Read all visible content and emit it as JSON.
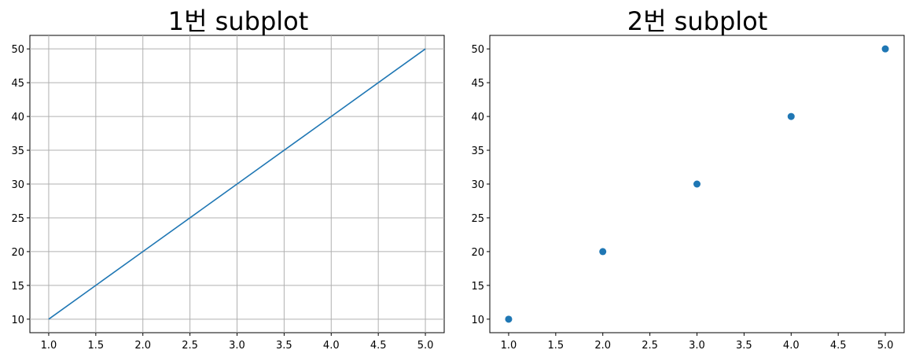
{
  "chart_data": [
    {
      "type": "line",
      "title": "1번 subplot",
      "xlabel": "",
      "ylabel": "",
      "x": [
        1,
        2,
        3,
        4,
        5
      ],
      "series": [
        {
          "values": [
            10,
            20,
            30,
            40,
            50
          ]
        }
      ],
      "xlim": [
        0.8,
        5.2
      ],
      "ylim": [
        8,
        52
      ],
      "xticks": [
        "1.0",
        "1.5",
        "2.0",
        "2.5",
        "3.0",
        "3.5",
        "4.0",
        "4.5",
        "5.0"
      ],
      "yticks": [
        "10",
        "15",
        "20",
        "25",
        "30",
        "35",
        "40",
        "45",
        "50"
      ],
      "grid": true,
      "color": "#1f77b4"
    },
    {
      "type": "scatter",
      "title": "2번 subplot",
      "xlabel": "",
      "ylabel": "",
      "x": [
        1,
        2,
        3,
        4,
        5
      ],
      "series": [
        {
          "values": [
            10,
            20,
            30,
            40,
            50
          ]
        }
      ],
      "xlim": [
        0.8,
        5.2
      ],
      "ylim": [
        8,
        52
      ],
      "xticks": [
        "1.0",
        "1.5",
        "2.0",
        "2.5",
        "3.0",
        "3.5",
        "4.0",
        "4.5",
        "5.0"
      ],
      "yticks": [
        "10",
        "15",
        "20",
        "25",
        "30",
        "35",
        "40",
        "45",
        "50"
      ],
      "grid": false,
      "color": "#1f77b4"
    }
  ]
}
